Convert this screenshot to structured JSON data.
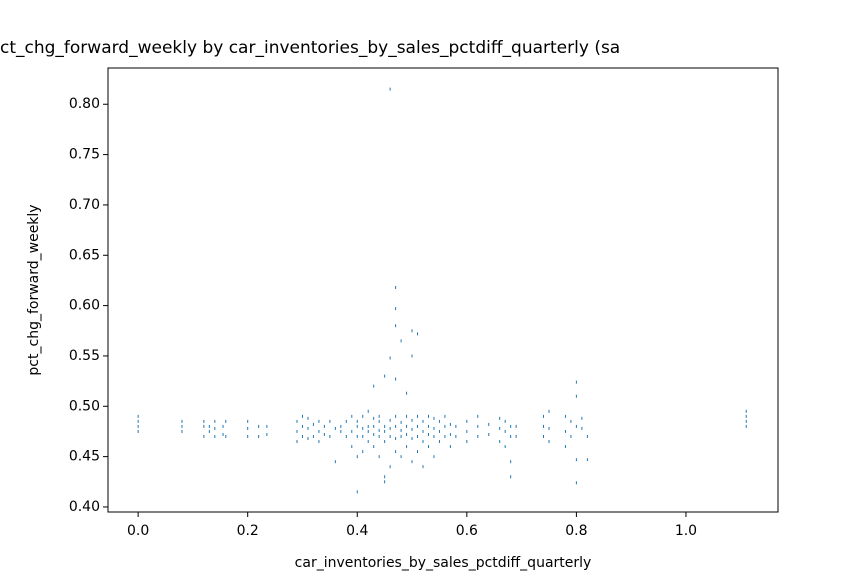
{
  "chart_data": {
    "type": "scatter",
    "title": "ct_chg_forward_weekly by car_inventories_by_sales_pctdiff_quarterly (sa",
    "x_label": "car_inventories_by_sales_pctdiff_quarterly",
    "y_label": "pct_chg_forward_weekly",
    "color": "#1f77b4",
    "xlim": [
      -0.055,
      1.168
    ],
    "ylim": [
      0.395,
      0.836
    ],
    "xticks": [
      {
        "value": 0,
        "label": "0.0"
      },
      0.2,
      0.4,
      0.6,
      0.8,
      {
        "value": 1,
        "label": "1.0"
      }
    ],
    "yticks": [
      {
        "value": 0.4,
        "label": "0.40"
      },
      0.45,
      {
        "value": 0.5,
        "label": "0.50"
      },
      0.55,
      {
        "value": 0.6,
        "label": "0.60"
      },
      0.65,
      {
        "value": 0.7,
        "label": "0.70"
      },
      0.75,
      {
        "value": 0.8,
        "label": "0.80"
      }
    ],
    "x": [
      0,
      0,
      0,
      0,
      0.08,
      0.08,
      0.08,
      0.12,
      0.12,
      0.12,
      0.13,
      0.13,
      0.14,
      0.14,
      0.14,
      0.155,
      0.155,
      0.16,
      0.16,
      0.2,
      0.2,
      0.2,
      0.22,
      0.22,
      0.235,
      0.235,
      0.29,
      0.29,
      0.29,
      0.3,
      0.3,
      0.3,
      0.31,
      0.31,
      0.31,
      0.32,
      0.32,
      0.33,
      0.33,
      0.33,
      0.34,
      0.34,
      0.35,
      0.35,
      0.36,
      0.36,
      0.37,
      0.37,
      0.38,
      0.38,
      0.39,
      0.39,
      0.39,
      0.4,
      0.4,
      0.4,
      0.4,
      0.4,
      0.41,
      0.41,
      0.41,
      0.41,
      0.42,
      0.42,
      0.42,
      0.42,
      0.43,
      0.43,
      0.43,
      0.43,
      0.43,
      0.44,
      0.44,
      0.44,
      0.44,
      0.44,
      0.45,
      0.45,
      0.45,
      0.45,
      0.45,
      0.45,
      0.46,
      0.46,
      0.46,
      0.46,
      0.46,
      0.46,
      0.47,
      0.47,
      0.47,
      0.47,
      0.47,
      0.47,
      0.47,
      0.47,
      0.48,
      0.48,
      0.48,
      0.48,
      0.48,
      0.49,
      0.49,
      0.49,
      0.49,
      0.49,
      0.5,
      0.5,
      0.5,
      0.5,
      0.5,
      0.5,
      0.51,
      0.51,
      0.51,
      0.51,
      0.51,
      0.52,
      0.52,
      0.52,
      0.52,
      0.53,
      0.53,
      0.53,
      0.53,
      0.54,
      0.54,
      0.54,
      0.54,
      0.55,
      0.55,
      0.55,
      0.56,
      0.56,
      0.56,
      0.57,
      0.57,
      0.57,
      0.58,
      0.58,
      0.6,
      0.6,
      0.6,
      0.62,
      0.62,
      0.62,
      0.64,
      0.64,
      0.66,
      0.66,
      0.66,
      0.67,
      0.67,
      0.67,
      0.68,
      0.68,
      0.68,
      0.68,
      0.69,
      0.69,
      0.74,
      0.74,
      0.74,
      0.75,
      0.75,
      0.75,
      0.78,
      0.78,
      0.78,
      0.79,
      0.79,
      0.8,
      0.8,
      0.8,
      0.8,
      0.8,
      0.81,
      0.81,
      0.82,
      0.82,
      1.11,
      1.11,
      1.11,
      1.11
    ],
    "y": [
      0.475,
      0.48,
      0.485,
      0.49,
      0.475,
      0.48,
      0.485,
      0.47,
      0.48,
      0.485,
      0.475,
      0.48,
      0.47,
      0.478,
      0.485,
      0.472,
      0.48,
      0.47,
      0.485,
      0.47,
      0.478,
      0.485,
      0.47,
      0.48,
      0.472,
      0.48,
      0.465,
      0.475,
      0.485,
      0.47,
      0.48,
      0.49,
      0.468,
      0.478,
      0.488,
      0.47,
      0.482,
      0.465,
      0.475,
      0.485,
      0.472,
      0.48,
      0.47,
      0.485,
      0.445,
      0.478,
      0.475,
      0.48,
      0.47,
      0.485,
      0.46,
      0.475,
      0.49,
      0.415,
      0.45,
      0.47,
      0.48,
      0.485,
      0.455,
      0.47,
      0.478,
      0.49,
      0.465,
      0.475,
      0.48,
      0.495,
      0.46,
      0.472,
      0.48,
      0.488,
      0.52,
      0.45,
      0.47,
      0.476,
      0.485,
      0.49,
      0.425,
      0.43,
      0.465,
      0.475,
      0.48,
      0.53,
      0.44,
      0.47,
      0.478,
      0.486,
      0.548,
      0.815,
      0.455,
      0.468,
      0.48,
      0.49,
      0.527,
      0.58,
      0.597,
      0.618,
      0.45,
      0.47,
      0.476,
      0.484,
      0.565,
      0.46,
      0.472,
      0.48,
      0.49,
      0.513,
      0.445,
      0.468,
      0.477,
      0.486,
      0.55,
      0.575,
      0.455,
      0.47,
      0.48,
      0.49,
      0.572,
      0.44,
      0.465,
      0.475,
      0.485,
      0.46,
      0.472,
      0.48,
      0.49,
      0.45,
      0.47,
      0.478,
      0.488,
      0.465,
      0.475,
      0.485,
      0.47,
      0.48,
      0.49,
      0.46,
      0.472,
      0.482,
      0.47,
      0.48,
      0.465,
      0.475,
      0.485,
      0.47,
      0.48,
      0.49,
      0.472,
      0.482,
      0.465,
      0.478,
      0.488,
      0.46,
      0.475,
      0.485,
      0.43,
      0.445,
      0.47,
      0.48,
      0.47,
      0.48,
      0.47,
      0.48,
      0.49,
      0.465,
      0.478,
      0.495,
      0.46,
      0.475,
      0.49,
      0.47,
      0.485,
      0.424,
      0.447,
      0.51,
      0.524,
      0.48,
      0.478,
      0.488,
      0.447,
      0.47,
      0.48,
      0.485,
      0.49,
      0.495
    ]
  }
}
